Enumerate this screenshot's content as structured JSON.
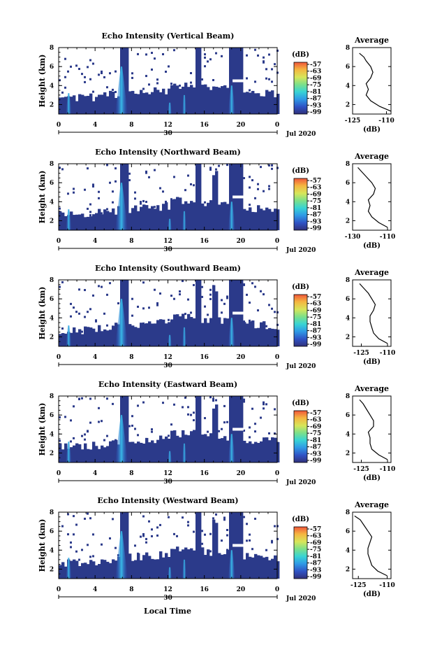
{
  "figure": {
    "time_axis_label": "Local Time",
    "month_year_label": "Jul 2020",
    "day_label": "30",
    "time_ticks": [
      "0",
      "4",
      "8",
      "12",
      "16",
      "20",
      "0"
    ],
    "height_label": "Height (km)",
    "height_ticks": [
      "2",
      "4",
      "6",
      "8"
    ],
    "colorbar_unit": "(dB)",
    "colorbar_ticks": [
      "-57",
      "-63",
      "-69",
      "-75",
      "-81",
      "-87",
      "-93",
      "-99"
    ],
    "average_title": "Average",
    "average_unit": "(dB)",
    "colors": {
      "background_echo": "#2b3a8a",
      "no_data": "#ffffff",
      "colormap": [
        "#30307a",
        "#2f52c4",
        "#2f9be6",
        "#38d4d4",
        "#7be08a",
        "#d6e65a",
        "#f5b640",
        "#f0563a"
      ]
    }
  },
  "chart_data": [
    {
      "type": "heatmap",
      "title": "Echo Intensity (Vertical Beam)",
      "x_range_hours": [
        0,
        24
      ],
      "y_range_km": [
        1,
        8
      ],
      "color_range_db": [
        -99,
        -57
      ],
      "average_profile": {
        "type": "line",
        "title": "Average",
        "xlim": [
          -125,
          -108
        ],
        "xticks": [
          "-125",
          "-110"
        ],
        "y_km": [
          1.3,
          1.8,
          2.4,
          3.0,
          3.6,
          4.2,
          4.8,
          5.4,
          6.0,
          6.6,
          7.0,
          7.4
        ],
        "x_db": [
          -108,
          -113,
          -117,
          -119,
          -118,
          -119,
          -117,
          -116,
          -117,
          -119,
          -120,
          -122
        ]
      }
    },
    {
      "type": "heatmap",
      "title": "Echo Intensity (Northward Beam)",
      "x_range_hours": [
        0,
        24
      ],
      "y_range_km": [
        1,
        8
      ],
      "color_range_db": [
        -99,
        -57
      ],
      "average_profile": {
        "type": "line",
        "title": "Average",
        "xlim": [
          -130,
          -108
        ],
        "xticks": [
          "-130",
          "-110"
        ],
        "y_km": [
          1.3,
          1.8,
          2.4,
          3.0,
          3.6,
          4.2,
          4.8,
          5.4,
          6.0,
          6.6,
          7.2,
          7.6
        ],
        "x_db": [
          -110,
          -115,
          -119,
          -121,
          -120,
          -121,
          -118,
          -117,
          -119,
          -122,
          -125,
          -127
        ]
      }
    },
    {
      "type": "heatmap",
      "title": "Echo Intensity (Southward Beam)",
      "x_range_hours": [
        0,
        24
      ],
      "y_range_km": [
        1,
        8
      ],
      "color_range_db": [
        -99,
        -57
      ],
      "average_profile": {
        "type": "line",
        "title": "Average",
        "xlim": [
          -130,
          -108
        ],
        "xticks": [
          "-125",
          "-110"
        ],
        "y_km": [
          1.3,
          1.8,
          2.4,
          3.0,
          3.6,
          4.2,
          4.8,
          5.4,
          6.0,
          6.6,
          7.2,
          7.6
        ],
        "x_db": [
          -110,
          -115,
          -118,
          -119,
          -120,
          -120,
          -118,
          -117,
          -119,
          -121,
          -124,
          -126
        ]
      }
    },
    {
      "type": "heatmap",
      "title": "Echo Intensity (Eastward Beam)",
      "x_range_hours": [
        0,
        24
      ],
      "y_range_km": [
        1,
        8
      ],
      "color_range_db": [
        -99,
        -57
      ],
      "average_profile": {
        "type": "line",
        "title": "Average",
        "xlim": [
          -130,
          -108
        ],
        "xticks": [
          "-125",
          "-110"
        ],
        "y_km": [
          1.3,
          1.8,
          2.4,
          3.0,
          3.6,
          4.2,
          4.8,
          5.4,
          6.0,
          6.6,
          7.2,
          7.6
        ],
        "x_db": [
          -110,
          -115,
          -119,
          -120,
          -120,
          -121,
          -118,
          -118,
          -120,
          -122,
          -124,
          -126
        ]
      }
    },
    {
      "type": "heatmap",
      "title": "Echo Intensity (Westward Beam)",
      "x_range_hours": [
        0,
        24
      ],
      "y_range_km": [
        1,
        8
      ],
      "color_range_db": [
        -99,
        -57
      ],
      "average_profile": {
        "type": "line",
        "title": "Average",
        "xlim": [
          -128,
          -108
        ],
        "xticks": [
          "-125",
          "-110"
        ],
        "y_km": [
          1.3,
          1.8,
          2.4,
          3.0,
          3.6,
          4.2,
          4.8,
          5.4,
          6.0,
          6.6,
          7.2,
          7.6
        ],
        "x_db": [
          -110,
          -115,
          -118,
          -119,
          -120,
          -120,
          -119,
          -118,
          -120,
          -122,
          -124,
          -127
        ]
      }
    }
  ]
}
